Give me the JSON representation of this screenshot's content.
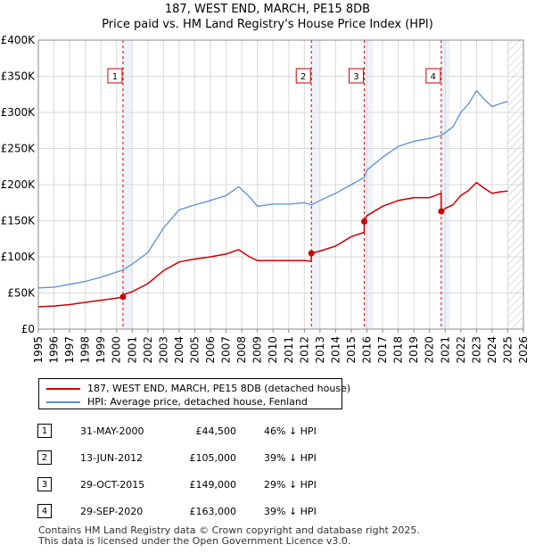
{
  "title_line1": "187, WEST END, MARCH, PE15 8DB",
  "title_line2": "Price paid vs. HM Land Registry's House Price Index (HPI)",
  "legend": {
    "property_label": "187, WEST END, MARCH, PE15 8DB (detached house)",
    "hpi_label": "HPI: Average price, detached house, Fenland"
  },
  "colors": {
    "property": "#cc0000",
    "hpi": "#5b8fd4",
    "shade": "#eef2f8"
  },
  "sales": [
    {
      "num": "1",
      "date": "31-MAY-2000",
      "price": "£44,500",
      "hpi": "46% ↓ HPI"
    },
    {
      "num": "2",
      "date": "13-JUN-2012",
      "price": "£105,000",
      "hpi": "39% ↓ HPI"
    },
    {
      "num": "3",
      "date": "29-OCT-2015",
      "price": "£149,000",
      "hpi": "29% ↓ HPI"
    },
    {
      "num": "4",
      "date": "29-SEP-2020",
      "price": "£163,000",
      "hpi": "39% ↓ HPI"
    }
  ],
  "footer_line1": "Contains HM Land Registry data © Crown copyright and database right 2025.",
  "footer_line2": "This data is licensed under the Open Government Licence v3.0.",
  "chart_data": {
    "type": "line",
    "xlim": [
      1995,
      2026
    ],
    "ylim": [
      0,
      400000
    ],
    "x_ticks": [
      "1995",
      "1996",
      "1997",
      "1998",
      "1999",
      "2000",
      "2001",
      "2002",
      "2003",
      "2004",
      "2005",
      "2006",
      "2007",
      "2008",
      "2009",
      "2010",
      "2011",
      "2012",
      "2013",
      "2014",
      "2015",
      "2016",
      "2017",
      "2018",
      "2019",
      "2020",
      "2021",
      "2022",
      "2023",
      "2024",
      "2025",
      "2026"
    ],
    "y_ticks": [
      {
        "value": 0,
        "label": "£0"
      },
      {
        "value": 50000,
        "label": "£50K"
      },
      {
        "value": 100000,
        "label": "£100K"
      },
      {
        "value": 150000,
        "label": "£150K"
      },
      {
        "value": 200000,
        "label": "£200K"
      },
      {
        "value": 250000,
        "label": "£250K"
      },
      {
        "value": 300000,
        "label": "£300K"
      },
      {
        "value": 350000,
        "label": "£350K"
      },
      {
        "value": 400000,
        "label": "£400K"
      }
    ],
    "shaded_ranges": [
      [
        2000.41,
        2001.0
      ],
      [
        2012.45,
        2013.0
      ],
      [
        2015.83,
        2016.4
      ],
      [
        2020.75,
        2021.3
      ]
    ],
    "future_start": 2025.0,
    "markers": [
      {
        "label": "1",
        "x": 2000.41,
        "y": 44500
      },
      {
        "label": "2",
        "x": 2012.45,
        "y": 105000
      },
      {
        "label": "3",
        "x": 2015.83,
        "y": 149000
      },
      {
        "label": "4",
        "x": 2020.75,
        "y": 163000
      }
    ],
    "series": [
      {
        "name": "HPI: Average price, detached house, Fenland",
        "x": [
          1995,
          1996,
          1997,
          1998,
          1999,
          2000,
          2000.41,
          2001,
          2002,
          2003,
          2004,
          2005,
          2006,
          2007,
          2007.8,
          2008.5,
          2009,
          2010,
          2011,
          2012,
          2012.45,
          2013,
          2014,
          2015,
          2015.83,
          2016,
          2017,
          2018,
          2019,
          2020,
          2020.75,
          2021,
          2021.5,
          2022,
          2022.5,
          2023,
          2023.5,
          2024,
          2024.5,
          2025
        ],
        "values": [
          57000,
          58000,
          62000,
          66000,
          72000,
          79000,
          82000,
          90000,
          106000,
          140000,
          165000,
          172000,
          178000,
          185000,
          197000,
          183000,
          170000,
          173000,
          173000,
          175000,
          172000,
          178000,
          188000,
          200000,
          210000,
          220000,
          238000,
          253000,
          260000,
          264000,
          268000,
          272000,
          280000,
          300000,
          312000,
          330000,
          318000,
          308000,
          312000,
          315000
        ]
      },
      {
        "name": "187, WEST END, MARCH, PE15 8DB (detached house)",
        "x": [
          1995,
          1996,
          1997,
          1998,
          1999,
          2000,
          2000.41,
          2000.5,
          2001,
          2002,
          2003,
          2004,
          2005,
          2006,
          2007,
          2007.8,
          2008.5,
          2009,
          2010,
          2011,
          2012,
          2012.44,
          2012.45,
          2013,
          2014,
          2015,
          2015.82,
          2015.83,
          2016,
          2017,
          2018,
          2019,
          2020,
          2020.74,
          2020.75,
          2021,
          2021.5,
          2022,
          2022.5,
          2023,
          2023.5,
          2024,
          2024.5,
          2025
        ],
        "values": [
          31000,
          32000,
          34000,
          37000,
          40000,
          43000,
          44500,
          48000,
          52000,
          63000,
          81000,
          93000,
          97000,
          100000,
          104000,
          110000,
          100000,
          95000,
          95000,
          95000,
          95000,
          94000,
          105000,
          108000,
          115000,
          128000,
          134000,
          149000,
          157000,
          170000,
          178000,
          182000,
          182000,
          188000,
          163000,
          167000,
          172000,
          185000,
          192000,
          203000,
          195000,
          188000,
          190000,
          191000
        ]
      }
    ]
  }
}
